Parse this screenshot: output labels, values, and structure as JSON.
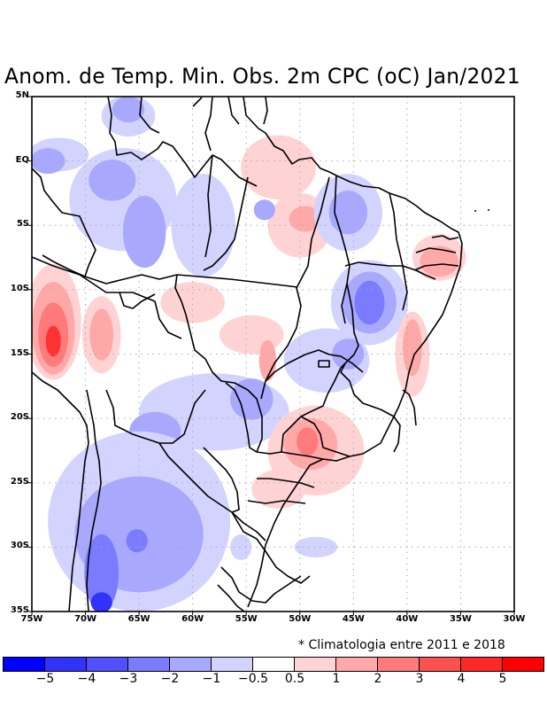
{
  "title": "Anom. de Temp. Min. Obs. 2m CPC (oC) Jan/2021",
  "note": "* Climatologia entre 2011 e 2018",
  "map": {
    "lat_labels": [
      "5N",
      "EQ",
      "5S",
      "10S",
      "15S",
      "20S",
      "25S",
      "30S",
      "35S"
    ],
    "lat_values": [
      5,
      0,
      -5,
      -10,
      -15,
      -20,
      -25,
      -30,
      -35
    ],
    "lon_labels": [
      "75W",
      "70W",
      "65W",
      "60W",
      "55W",
      "50W",
      "45W",
      "40W",
      "35W",
      "30W"
    ],
    "lon_values": [
      -75,
      -70,
      -65,
      -60,
      -55,
      -50,
      -45,
      -40,
      -35,
      -30
    ],
    "extent": {
      "lon_min": -75,
      "lon_max": -30,
      "lat_min": -35,
      "lat_max": 5
    },
    "anomaly_areas": [
      {
        "level": -1,
        "lon": -66.5,
        "lat": -3.0,
        "rx": 5,
        "ry": 4
      },
      {
        "level": -2,
        "lon": -67.5,
        "lat": -1.5,
        "rx": 2.2,
        "ry": 1.6
      },
      {
        "level": -2,
        "lon": -64.5,
        "lat": -5.5,
        "rx": 2.0,
        "ry": 2.8
      },
      {
        "level": -1,
        "lon": -72.5,
        "lat": 0.5,
        "rx": 2.8,
        "ry": 1.3
      },
      {
        "level": -2,
        "lon": -73.5,
        "lat": 0.0,
        "rx": 1.6,
        "ry": 1.0
      },
      {
        "level": -1,
        "lon": -66.0,
        "lat": 3.5,
        "rx": 2.5,
        "ry": 1.6
      },
      {
        "level": -2,
        "lon": -66.0,
        "lat": 4.0,
        "rx": 1.5,
        "ry": 1.0
      },
      {
        "level": -1,
        "lon": -59.0,
        "lat": -5.0,
        "rx": 3,
        "ry": 4
      },
      {
        "level": 1,
        "lon": -52.0,
        "lat": -0.5,
        "rx": 3.5,
        "ry": 2.5
      },
      {
        "level": 1,
        "lon": -50.0,
        "lat": -5.0,
        "rx": 3,
        "ry": 2.5
      },
      {
        "level": 2,
        "lon": -49.5,
        "lat": -4.5,
        "rx": 1.5,
        "ry": 1.0
      },
      {
        "level": -2,
        "lon": -53.3,
        "lat": -3.8,
        "rx": 1.0,
        "ry": 0.8
      },
      {
        "level": -1,
        "lon": -45.5,
        "lat": -4.0,
        "rx": 3.2,
        "ry": 3.0
      },
      {
        "level": -2,
        "lon": -45.5,
        "lat": -4.0,
        "rx": 1.8,
        "ry": 1.7
      },
      {
        "level": -1,
        "lon": -43.5,
        "lat": -11.0,
        "rx": 3.6,
        "ry": 3.3
      },
      {
        "level": -2,
        "lon": -43.5,
        "lat": -11.0,
        "rx": 2.5,
        "ry": 2.4
      },
      {
        "level": -3,
        "lon": -43.5,
        "lat": -11.0,
        "rx": 1.4,
        "ry": 1.7
      },
      {
        "level": 1,
        "lon": -37.0,
        "lat": -7.5,
        "rx": 2.5,
        "ry": 1.8
      },
      {
        "level": 2,
        "lon": -37.0,
        "lat": -7.8,
        "rx": 1.8,
        "ry": 1.2
      },
      {
        "level": 1,
        "lon": -39.5,
        "lat": -15.0,
        "rx": 1.6,
        "ry": 3.3
      },
      {
        "level": 2,
        "lon": -39.5,
        "lat": -14.5,
        "rx": 0.9,
        "ry": 2.2
      },
      {
        "level": 1,
        "lon": -73.0,
        "lat": -12.5,
        "rx": 2.6,
        "ry": 4.5
      },
      {
        "level": 2,
        "lon": -73.0,
        "lat": -13.0,
        "rx": 2.0,
        "ry": 3.6
      },
      {
        "level": 3,
        "lon": -73.0,
        "lat": -13.5,
        "rx": 1.4,
        "ry": 2.5
      },
      {
        "level": 4,
        "lon": -73.0,
        "lat": -14.0,
        "rx": 0.7,
        "ry": 1.2
      },
      {
        "level": 1,
        "lon": -68.5,
        "lat": -13.5,
        "rx": 1.8,
        "ry": 3.0
      },
      {
        "level": 2,
        "lon": -68.5,
        "lat": -13.5,
        "rx": 1.1,
        "ry": 2.0
      },
      {
        "level": 1,
        "lon": -60.0,
        "lat": -11.0,
        "rx": 3.0,
        "ry": 1.6
      },
      {
        "level": 1,
        "lon": -54.5,
        "lat": -13.5,
        "rx": 3.0,
        "ry": 1.5
      },
      {
        "level": 2,
        "lon": -53.0,
        "lat": -15.5,
        "rx": 0.8,
        "ry": 1.6
      },
      {
        "level": -1,
        "lon": -58.0,
        "lat": -19.5,
        "rx": 7,
        "ry": 3.0
      },
      {
        "level": -2,
        "lon": -54.5,
        "lat": -18.5,
        "rx": 2.0,
        "ry": 1.6
      },
      {
        "level": -2,
        "lon": -63.5,
        "lat": -21.0,
        "rx": 2.4,
        "ry": 1.5
      },
      {
        "level": -1,
        "lon": -65.0,
        "lat": -28.0,
        "rx": 8.5,
        "ry": 7.0
      },
      {
        "level": -2,
        "lon": -65.0,
        "lat": -29.0,
        "rx": 6.0,
        "ry": 4.5
      },
      {
        "level": -3,
        "lon": -65.2,
        "lat": -29.5,
        "rx": 1.0,
        "ry": 0.9
      },
      {
        "level": -3,
        "lon": -68.5,
        "lat": -32.0,
        "rx": 1.6,
        "ry": 3.0
      },
      {
        "level": -4,
        "lon": -68.5,
        "lat": -34.3,
        "rx": 1.0,
        "ry": 0.8
      },
      {
        "level": -1,
        "lon": -47.5,
        "lat": -15.5,
        "rx": 4,
        "ry": 2.5
      },
      {
        "level": -2,
        "lon": -45.5,
        "lat": -15.0,
        "rx": 1.5,
        "ry": 1.2
      },
      {
        "level": 1,
        "lon": -48.5,
        "lat": -22.5,
        "rx": 4.5,
        "ry": 3.5
      },
      {
        "level": 2,
        "lon": -49.0,
        "lat": -22.0,
        "rx": 2.5,
        "ry": 2.0
      },
      {
        "level": 3,
        "lon": -49.3,
        "lat": -21.8,
        "rx": 1.0,
        "ry": 1.1
      },
      {
        "level": 1,
        "lon": -52.0,
        "lat": -25.5,
        "rx": 2.5,
        "ry": 1.5
      },
      {
        "level": -1,
        "lon": -55.5,
        "lat": -30.0,
        "rx": 1.0,
        "ry": 1.0
      },
      {
        "level": -1,
        "lon": -48.5,
        "lat": -30.0,
        "rx": 2.0,
        "ry": 0.8
      }
    ],
    "colors": {
      "-5": "#0000ff",
      "-4": "#3232ff",
      "-3": "#5a5aff",
      "-2": "#8080ff",
      "-1": "#ababff",
      "-0.5": "#d5d5ff",
      "0": "#ffffff",
      "0.5": "#ffd5d5",
      "1": "#ffabab",
      "2": "#ff8080",
      "3": "#ff5a5a",
      "4": "#ff3232",
      "5": "#ff0000"
    }
  },
  "colorbar": {
    "colors": [
      "#0000ff",
      "#3232ff",
      "#5050ff",
      "#7b7bff",
      "#a8a8ff",
      "#d3d3ff",
      "#ffffff",
      "#ffd3d3",
      "#ffa8a8",
      "#ff7b7b",
      "#ff5050",
      "#ff2828",
      "#ff0000"
    ],
    "labels": [
      "−5",
      "−4",
      "−3",
      "−2",
      "−1",
      "−0.5",
      "0.5",
      "1",
      "2",
      "3",
      "4",
      "5"
    ]
  }
}
